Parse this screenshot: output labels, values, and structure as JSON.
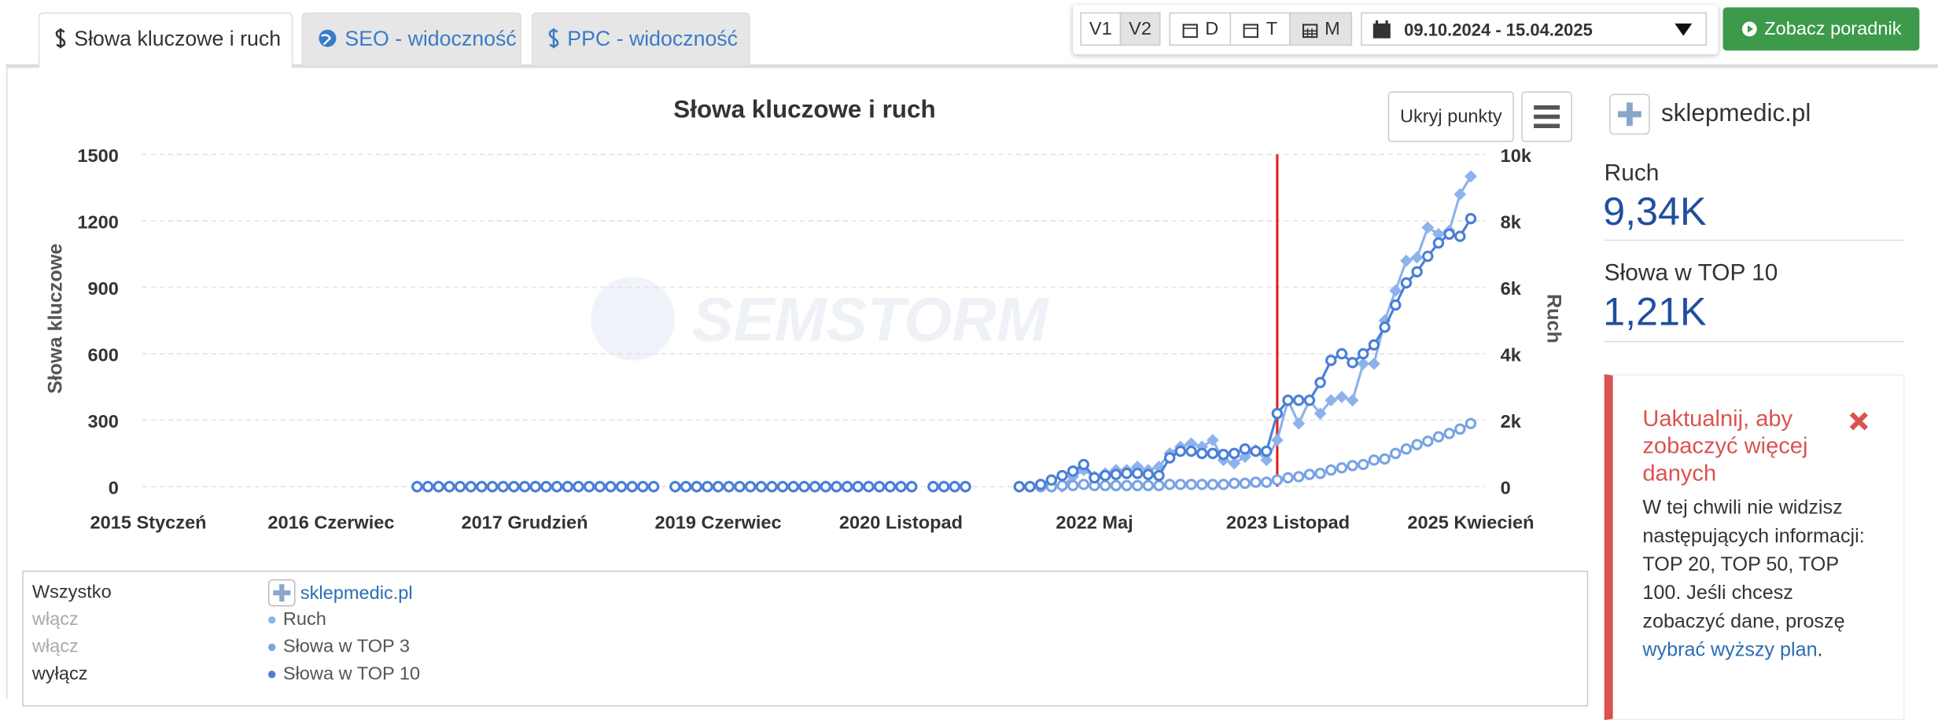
{
  "ui": {
    "tabs": [
      "Słowa kluczowe i ruch",
      "SEO - widoczność",
      "PPC - widoczność"
    ],
    "toolbar": {
      "versions": [
        "V1",
        "V2"
      ],
      "periods": [
        "D",
        "T",
        "M"
      ],
      "date_range": "09.10.2024 - 15.04.2025",
      "guide_button": "Zobacz poradnik"
    },
    "hide_points_button": "Ukryj punkty",
    "watermark": "SEMSTORM",
    "legend_table": {
      "all": "Wszystko",
      "domain": "sklepmedic.pl",
      "toggles": [
        "włącz",
        "włącz",
        "wyłącz"
      ]
    },
    "sidebar": {
      "domain": "sklepmedic.pl",
      "stats": [
        {
          "label": "Ruch",
          "value": "9,34K"
        },
        {
          "label": "Słowa w TOP 10",
          "value": "1,21K"
        }
      ],
      "alert": {
        "title": "Uaktualnij, aby zobaczyć więcej danych",
        "text": "W tej chwili nie widzisz następujących informacji: TOP 20, TOP 50, TOP 100. Jeśli chcesz zobaczyć dane, proszę",
        "link": "wybrać wyższy plan",
        "end": "."
      }
    }
  },
  "chart_data": {
    "type": "line",
    "title": "Słowa kluczowe i ruch",
    "ylabel": "Słowa kluczowe",
    "y2label": "Ruch",
    "categories": [
      "2015 Styczeń",
      null,
      null,
      null,
      null,
      null,
      null,
      null,
      null,
      null,
      null,
      null,
      null,
      null,
      null,
      null,
      null,
      "2016 Czerwiec",
      null,
      null,
      null,
      null,
      null,
      null,
      null,
      null,
      null,
      null,
      null,
      null,
      null,
      null,
      null,
      null,
      null,
      "2017 Grudzień",
      null,
      null,
      null,
      null,
      null,
      null,
      null,
      null,
      null,
      null,
      null,
      null,
      null,
      null,
      null,
      null,
      null,
      "2019 Czerwiec",
      null,
      null,
      null,
      null,
      null,
      null,
      null,
      null,
      null,
      null,
      null,
      null,
      null,
      null,
      null,
      null,
      "2020 Listopad",
      null,
      null,
      null,
      null,
      null,
      null,
      null,
      null,
      null,
      null,
      null,
      null,
      null,
      null,
      null,
      null,
      null,
      "2022 Maj",
      null,
      null,
      null,
      null,
      null,
      null,
      null,
      null,
      null,
      null,
      null,
      null,
      null,
      null,
      null,
      null,
      null,
      "2023 Listopad",
      null,
      null,
      null,
      null,
      null,
      null,
      null,
      null,
      null,
      null,
      null,
      null,
      null,
      null,
      null,
      null,
      "2025 Kwiecień"
    ],
    "ylim": [
      0,
      1500
    ],
    "yticks": [
      0,
      300,
      600,
      900,
      1200,
      1500
    ],
    "y2lim": [
      0,
      10000
    ],
    "y2ticks": [
      0,
      {
        "value": 2000,
        "label": "2k"
      },
      {
        "value": 4000,
        "label": "4k"
      },
      {
        "value": 6000,
        "label": "6k"
      },
      {
        "value": 8000,
        "label": "8k"
      },
      {
        "value": 10000,
        "label": "10k"
      }
    ],
    "grid": true,
    "plot_line_index": 105,
    "plot_line_color": "#e0231c",
    "series": [
      {
        "name": "Ruch",
        "color": "#8db2ec",
        "axis": "y2",
        "marker": "diamond",
        "values": [
          null,
          null,
          null,
          null,
          null,
          null,
          null,
          null,
          null,
          null,
          null,
          null,
          null,
          null,
          null,
          null,
          null,
          null,
          null,
          null,
          null,
          null,
          null,
          null,
          null,
          0,
          0,
          0,
          0,
          0,
          0,
          0,
          0,
          0,
          0,
          0,
          0,
          0,
          0,
          0,
          0,
          0,
          0,
          0,
          0,
          0,
          0,
          0,
          null,
          0,
          0,
          0,
          0,
          0,
          0,
          0,
          0,
          0,
          0,
          0,
          0,
          0,
          0,
          0,
          0,
          0,
          0,
          0,
          0,
          0,
          0,
          0,
          null,
          0,
          0,
          0,
          0,
          null,
          null,
          null,
          null,
          0,
          0,
          0,
          0,
          0,
          300,
          500,
          300,
          400,
          500,
          500,
          600,
          500,
          600,
          1000,
          1200,
          1300,
          1200,
          1400,
          800,
          700,
          900,
          1100,
          800,
          1400,
          2600,
          1900,
          2600,
          2200,
          2600,
          2700,
          2600,
          3700,
          3700,
          5000,
          5900,
          6800,
          6900,
          7800,
          7600,
          7700,
          8800,
          9340
        ]
      },
      {
        "name": "Słowa w TOP 3",
        "color": "#79a3e4",
        "marker": "circle",
        "values": [
          null,
          null,
          null,
          null,
          null,
          null,
          null,
          null,
          null,
          null,
          null,
          null,
          null,
          null,
          null,
          null,
          null,
          null,
          null,
          null,
          null,
          null,
          null,
          null,
          null,
          0,
          0,
          0,
          0,
          0,
          0,
          0,
          0,
          0,
          0,
          0,
          0,
          0,
          0,
          0,
          0,
          0,
          0,
          0,
          0,
          0,
          0,
          0,
          null,
          0,
          0,
          0,
          0,
          0,
          0,
          0,
          0,
          0,
          0,
          0,
          0,
          0,
          0,
          0,
          0,
          0,
          0,
          0,
          0,
          0,
          0,
          0,
          null,
          0,
          0,
          0,
          0,
          null,
          null,
          null,
          null,
          0,
          0,
          0,
          0,
          5,
          5,
          10,
          5,
          5,
          5,
          5,
          5,
          5,
          5,
          10,
          10,
          10,
          10,
          10,
          10,
          15,
          15,
          20,
          20,
          30,
          40,
          45,
          55,
          60,
          75,
          85,
          95,
          100,
          120,
          125,
          150,
          170,
          190,
          205,
          225,
          240,
          260,
          285
        ]
      },
      {
        "name": "Słowa w TOP 10",
        "color": "#4a7fd6",
        "marker": "circle",
        "values": [
          null,
          null,
          null,
          null,
          null,
          null,
          null,
          null,
          null,
          null,
          null,
          null,
          null,
          null,
          null,
          null,
          null,
          null,
          null,
          null,
          null,
          null,
          null,
          null,
          null,
          0,
          0,
          0,
          0,
          0,
          0,
          0,
          0,
          0,
          0,
          0,
          0,
          0,
          0,
          0,
          0,
          0,
          0,
          0,
          0,
          0,
          0,
          0,
          null,
          0,
          0,
          0,
          0,
          0,
          0,
          0,
          0,
          0,
          0,
          0,
          0,
          0,
          0,
          0,
          0,
          0,
          0,
          0,
          0,
          0,
          0,
          0,
          null,
          0,
          0,
          0,
          0,
          null,
          null,
          null,
          null,
          0,
          0,
          10,
          30,
          50,
          70,
          100,
          40,
          50,
          55,
          60,
          60,
          55,
          50,
          130,
          160,
          160,
          150,
          150,
          145,
          150,
          170,
          160,
          160,
          330,
          390,
          390,
          390,
          470,
          570,
          600,
          560,
          600,
          640,
          720,
          820,
          920,
          970,
          1040,
          1100,
          1140,
          1130,
          1210
        ]
      }
    ]
  }
}
